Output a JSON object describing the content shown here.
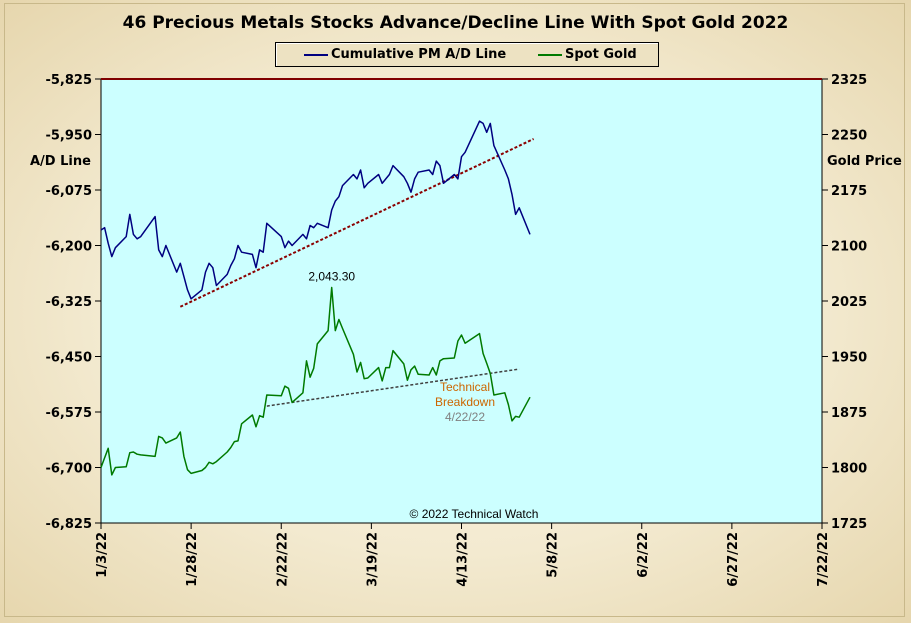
{
  "chart_data": {
    "type": "line",
    "title": "46 Precious Metals Stocks Advance/Decline Line With Spot Gold 2022",
    "ylabel_left": "A/D Line",
    "ylabel_right": "Gold Price",
    "legend_placement": "top-center",
    "grid": false,
    "x_tick_labels": [
      "1/3/22",
      "1/28/22",
      "2/22/22",
      "3/19/22",
      "4/13/22",
      "5/8/22",
      "6/2/22",
      "6/27/22",
      "7/22/22"
    ],
    "xlim": [
      "2022-01-03",
      "2022-07-22"
    ],
    "ylim_left": [
      -6825,
      -5825
    ],
    "ylim_right": [
      1725,
      2325
    ],
    "y_ticks_left": [
      "-5,825",
      "-5,950",
      "-6,075",
      "-6,200",
      "-6,325",
      "-6,450",
      "-6,575",
      "-6,700",
      "-6,825"
    ],
    "y_ticks_right": [
      "2325",
      "2250",
      "2175",
      "2100",
      "2025",
      "1950",
      "1875",
      "1800",
      "1725"
    ],
    "colors": {
      "plot_background": "#ccffff",
      "ad_line": "#000080",
      "gold_line": "#007a00",
      "ad_trend": "#8b0000",
      "gold_trend": "#404040",
      "breakdown_text": "#cc6600",
      "breakdown_date": "#808080",
      "top_border": "#800000"
    },
    "series": [
      {
        "name": "Cumulative PM A/D Line",
        "axis": "left",
        "x": [
          "2022-01-03",
          "2022-01-04",
          "2022-01-05",
          "2022-01-06",
          "2022-01-07",
          "2022-01-10",
          "2022-01-11",
          "2022-01-12",
          "2022-01-13",
          "2022-01-14",
          "2022-01-18",
          "2022-01-19",
          "2022-01-20",
          "2022-01-21",
          "2022-01-24",
          "2022-01-25",
          "2022-01-26",
          "2022-01-27",
          "2022-01-28",
          "2022-01-31",
          "2022-02-01",
          "2022-02-02",
          "2022-02-03",
          "2022-02-04",
          "2022-02-07",
          "2022-02-08",
          "2022-02-09",
          "2022-02-10",
          "2022-02-11",
          "2022-02-14",
          "2022-02-15",
          "2022-02-16",
          "2022-02-17",
          "2022-02-18",
          "2022-02-22",
          "2022-02-23",
          "2022-02-24",
          "2022-02-25",
          "2022-02-28",
          "2022-03-01",
          "2022-03-02",
          "2022-03-03",
          "2022-03-04",
          "2022-03-07",
          "2022-03-08",
          "2022-03-09",
          "2022-03-10",
          "2022-03-11",
          "2022-03-14",
          "2022-03-15",
          "2022-03-16",
          "2022-03-17",
          "2022-03-18",
          "2022-03-21",
          "2022-03-22",
          "2022-03-23",
          "2022-03-24",
          "2022-03-25",
          "2022-03-28",
          "2022-03-29",
          "2022-03-30",
          "2022-03-31",
          "2022-04-01",
          "2022-04-04",
          "2022-04-05",
          "2022-04-06",
          "2022-04-07",
          "2022-04-08",
          "2022-04-11",
          "2022-04-12",
          "2022-04-13",
          "2022-04-14",
          "2022-04-18",
          "2022-04-19",
          "2022-04-20",
          "2022-04-21",
          "2022-04-22",
          "2022-04-25",
          "2022-04-26",
          "2022-04-27",
          "2022-04-28",
          "2022-04-29",
          "2022-05-02"
        ],
        "values": [
          -6165,
          -6160,
          -6195,
          -6225,
          -6205,
          -6180,
          -6130,
          -6175,
          -6185,
          -6180,
          -6135,
          -6210,
          -6225,
          -6200,
          -6260,
          -6240,
          -6270,
          -6300,
          -6320,
          -6300,
          -6260,
          -6240,
          -6250,
          -6290,
          -6265,
          -6245,
          -6230,
          -6200,
          -6215,
          -6220,
          -6250,
          -6210,
          -6215,
          -6150,
          -6180,
          -6205,
          -6190,
          -6200,
          -6175,
          -6185,
          -6155,
          -6160,
          -6150,
          -6160,
          -6120,
          -6100,
          -6090,
          -6065,
          -6040,
          -6050,
          -6030,
          -6070,
          -6060,
          -6040,
          -6060,
          -6050,
          -6040,
          -6020,
          -6045,
          -6060,
          -6080,
          -6050,
          -6035,
          -6030,
          -6040,
          -6010,
          -6020,
          -6060,
          -6040,
          -6050,
          -6000,
          -5990,
          -5920,
          -5925,
          -5945,
          -5925,
          -5975,
          -6030,
          -6050,
          -6085,
          -6130,
          -6115,
          -6175
        ]
      },
      {
        "name": "Spot Gold",
        "axis": "right",
        "x": [
          "2022-01-03",
          "2022-01-04",
          "2022-01-05",
          "2022-01-06",
          "2022-01-07",
          "2022-01-10",
          "2022-01-11",
          "2022-01-12",
          "2022-01-13",
          "2022-01-14",
          "2022-01-18",
          "2022-01-19",
          "2022-01-20",
          "2022-01-21",
          "2022-01-24",
          "2022-01-25",
          "2022-01-26",
          "2022-01-27",
          "2022-01-28",
          "2022-01-31",
          "2022-02-01",
          "2022-02-02",
          "2022-02-03",
          "2022-02-04",
          "2022-02-07",
          "2022-02-08",
          "2022-02-09",
          "2022-02-10",
          "2022-02-11",
          "2022-02-14",
          "2022-02-15",
          "2022-02-16",
          "2022-02-17",
          "2022-02-18",
          "2022-02-22",
          "2022-02-23",
          "2022-02-24",
          "2022-02-25",
          "2022-02-28",
          "2022-03-01",
          "2022-03-02",
          "2022-03-03",
          "2022-03-04",
          "2022-03-07",
          "2022-03-08",
          "2022-03-09",
          "2022-03-10",
          "2022-03-11",
          "2022-03-14",
          "2022-03-15",
          "2022-03-16",
          "2022-03-17",
          "2022-03-18",
          "2022-03-21",
          "2022-03-22",
          "2022-03-23",
          "2022-03-24",
          "2022-03-25",
          "2022-03-28",
          "2022-03-29",
          "2022-03-30",
          "2022-03-31",
          "2022-04-01",
          "2022-04-04",
          "2022-04-05",
          "2022-04-06",
          "2022-04-07",
          "2022-04-08",
          "2022-04-11",
          "2022-04-12",
          "2022-04-13",
          "2022-04-14",
          "2022-04-18",
          "2022-04-19",
          "2022-04-20",
          "2022-04-21",
          "2022-04-22",
          "2022-04-25",
          "2022-04-26",
          "2022-04-27",
          "2022-04-28",
          "2022-04-29",
          "2022-05-02"
        ],
        "values": [
          1800,
          1813,
          1826,
          1790,
          1800,
          1801,
          1820,
          1821,
          1818,
          1817,
          1815,
          1842,
          1840,
          1833,
          1840,
          1848,
          1815,
          1797,
          1792,
          1796,
          1800,
          1807,
          1805,
          1808,
          1821,
          1827,
          1835,
          1836,
          1859,
          1871,
          1855,
          1870,
          1868,
          1898,
          1897,
          1910,
          1907,
          1888,
          1901,
          1944,
          1922,
          1934,
          1967,
          1985,
          2043.3,
          1985,
          2000,
          1988,
          1953,
          1929,
          1942,
          1920,
          1921,
          1935,
          1917,
          1935,
          1935,
          1958,
          1940,
          1918,
          1932,
          1937,
          1926,
          1925,
          1935,
          1925,
          1944,
          1947,
          1948,
          1971,
          1979,
          1968,
          1981,
          1954,
          1941,
          1927,
          1898,
          1901,
          1885,
          1863,
          1869,
          1868,
          1895
        ]
      }
    ],
    "trend_lines": [
      {
        "series": "Cumulative PM A/D Line",
        "from": {
          "x": "2022-01-25",
          "y": -6338
        },
        "to": {
          "x": "2022-05-03",
          "y": -5960
        }
      },
      {
        "series": "Spot Gold",
        "from": {
          "x": "2022-02-18",
          "y": 1883
        },
        "to": {
          "x": "2022-04-29",
          "y": 1933
        }
      }
    ],
    "annotations": {
      "peak_label": {
        "text": "2,043.30",
        "x": "2022-03-08",
        "y": 2043.3
      },
      "breakdown_line1": "Technical",
      "breakdown_line2": "Breakdown",
      "breakdown_date": "4/22/22",
      "copyright": "© 2022 Technical Watch"
    }
  }
}
